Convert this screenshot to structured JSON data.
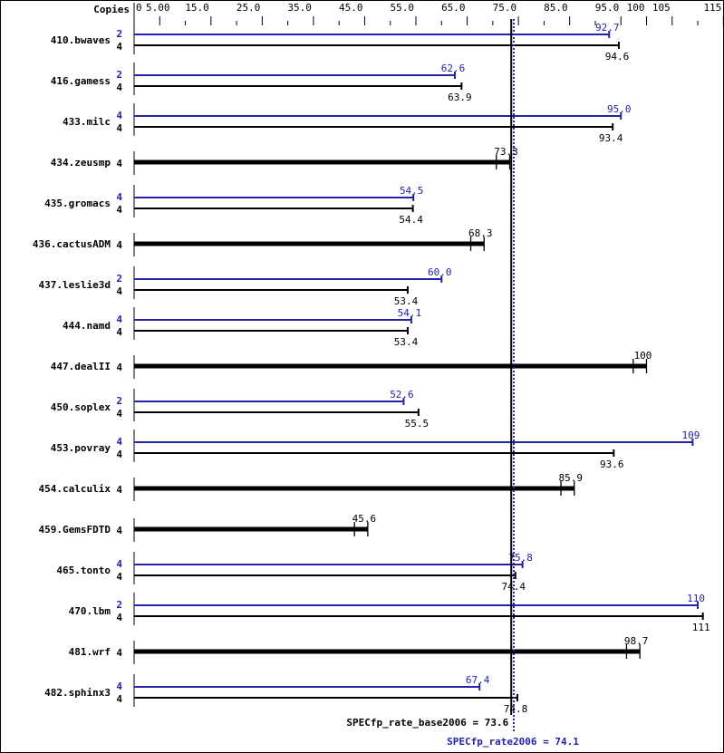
{
  "chart_data": {
    "type": "bar",
    "orientation": "horizontal",
    "axis_label": "Copies",
    "xlim": [
      0,
      115
    ],
    "tick_labels": [
      {
        "value": 0,
        "label": "0"
      },
      {
        "value": 5,
        "label": "5.00"
      },
      {
        "value": 15,
        "label": "15.0"
      },
      {
        "value": 25,
        "label": "25.0"
      },
      {
        "value": 35,
        "label": "35.0"
      },
      {
        "value": 45,
        "label": "45.0"
      },
      {
        "value": 55,
        "label": "55.0"
      },
      {
        "value": 65,
        "label": "65.0"
      },
      {
        "value": 75,
        "label": "75.0"
      },
      {
        "value": 85,
        "label": "85.0"
      },
      {
        "value": 95,
        "label": "95.0"
      },
      {
        "value": 100,
        "label": "100"
      },
      {
        "value": 105,
        "label": "105"
      },
      {
        "value": 115,
        "label": "115"
      }
    ],
    "colors": {
      "base": "#000000",
      "peak": "#2222aa"
    },
    "benchmarks": [
      {
        "name": "410.bwaves",
        "peak": {
          "copies": "2",
          "value": 92.7,
          "label": "92.7"
        },
        "base": {
          "copies": "4",
          "value": 94.6,
          "label": "94.6"
        }
      },
      {
        "name": "416.gamess",
        "peak": {
          "copies": "2",
          "value": 62.6,
          "label": "62.6"
        },
        "base": {
          "copies": "4",
          "value": 63.9,
          "label": "63.9"
        }
      },
      {
        "name": "433.milc",
        "peak": {
          "copies": "4",
          "value": 95.0,
          "label": "95.0"
        },
        "base": {
          "copies": "4",
          "value": 93.4,
          "label": "93.4"
        }
      },
      {
        "name": "434.zeusmp",
        "base": {
          "copies": "4",
          "value": 73.3,
          "label": "73.3"
        }
      },
      {
        "name": "435.gromacs",
        "peak": {
          "copies": "4",
          "value": 54.5,
          "label": "54.5"
        },
        "base": {
          "copies": "4",
          "value": 54.4,
          "label": "54.4"
        }
      },
      {
        "name": "436.cactusADM",
        "base": {
          "copies": "4",
          "value": 68.3,
          "label": "68.3"
        }
      },
      {
        "name": "437.leslie3d",
        "peak": {
          "copies": "2",
          "value": 60.0,
          "label": "60.0"
        },
        "base": {
          "copies": "4",
          "value": 53.4,
          "label": "53.4"
        }
      },
      {
        "name": "444.namd",
        "peak": {
          "copies": "4",
          "value": 54.1,
          "label": "54.1"
        },
        "base": {
          "copies": "4",
          "value": 53.4,
          "label": "53.4"
        }
      },
      {
        "name": "447.dealII",
        "base": {
          "copies": "4",
          "value": 100,
          "label": "100"
        }
      },
      {
        "name": "450.soplex",
        "peak": {
          "copies": "2",
          "value": 52.6,
          "label": "52.6"
        },
        "base": {
          "copies": "4",
          "value": 55.5,
          "label": "55.5"
        }
      },
      {
        "name": "453.povray",
        "peak": {
          "copies": "4",
          "value": 109,
          "label": "109"
        },
        "base": {
          "copies": "4",
          "value": 93.6,
          "label": "93.6"
        }
      },
      {
        "name": "454.calculix",
        "base": {
          "copies": "4",
          "value": 85.9,
          "label": "85.9"
        }
      },
      {
        "name": "459.GemsFDTD",
        "base": {
          "copies": "4",
          "value": 45.6,
          "label": "45.6"
        }
      },
      {
        "name": "465.tonto",
        "peak": {
          "copies": "4",
          "value": 75.8,
          "label": "75.8"
        },
        "base": {
          "copies": "4",
          "value": 74.4,
          "label": "74.4"
        }
      },
      {
        "name": "470.lbm",
        "peak": {
          "copies": "2",
          "value": 110,
          "label": "110"
        },
        "base": {
          "copies": "4",
          "value": 111,
          "label": "111"
        }
      },
      {
        "name": "481.wrf",
        "base": {
          "copies": "4",
          "value": 98.7,
          "label": "98.7"
        }
      },
      {
        "name": "482.sphinx3",
        "peak": {
          "copies": "4",
          "value": 67.4,
          "label": "67.4"
        },
        "base": {
          "copies": "4",
          "value": 74.8,
          "label": "74.8"
        }
      }
    ],
    "reference_lines": {
      "base": {
        "value": 73.6,
        "label": "SPECfp_rate_base2006 = 73.6"
      },
      "peak": {
        "value": 74.1,
        "label": "SPECfp_rate2006 = 74.1"
      }
    }
  }
}
